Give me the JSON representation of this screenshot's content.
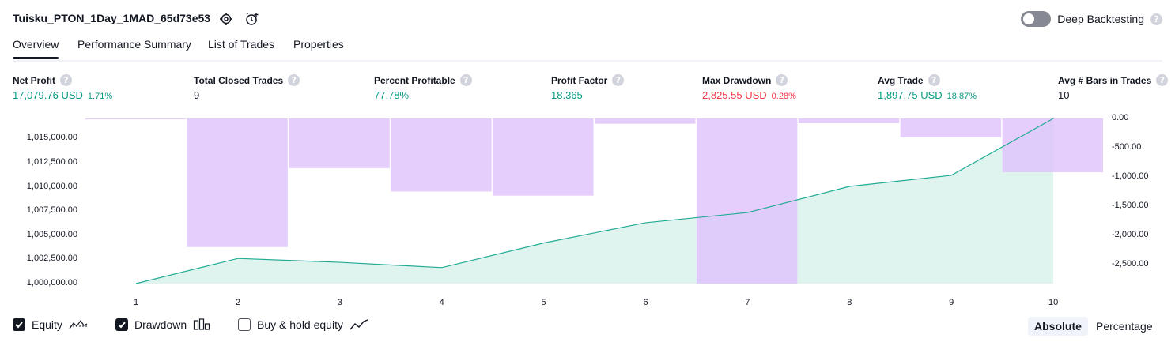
{
  "header": {
    "title": "Tuisku_PTON_1Day_1MAD_65d73e53",
    "deep_backtesting_label": "Deep Backtesting",
    "help_glyph": "?"
  },
  "tabs": [
    {
      "label": "Overview",
      "active": true
    },
    {
      "label": "Performance Summary",
      "active": false
    },
    {
      "label": "List of Trades",
      "active": false
    },
    {
      "label": "Properties",
      "active": false
    }
  ],
  "metrics": [
    {
      "label": "Net Profit",
      "value": "17,079.76 USD",
      "pct": "1.71%",
      "color": "#089981"
    },
    {
      "label": "Total Closed Trades",
      "value": "9",
      "pct": "",
      "color": "#131722"
    },
    {
      "label": "Percent Profitable",
      "value": "77.78%",
      "pct": "",
      "color": "#089981"
    },
    {
      "label": "Profit Factor",
      "value": "18.365",
      "pct": "",
      "color": "#089981"
    },
    {
      "label": "Max Drawdown",
      "value": "2,825.55 USD",
      "pct": "0.28%",
      "color": "#f23645"
    },
    {
      "label": "Avg Trade",
      "value": "1,897.75 USD",
      "pct": "18.87%",
      "color": "#089981"
    },
    {
      "label": "Avg # Bars in Trades",
      "value": "10",
      "pct": "",
      "color": "#131722"
    }
  ],
  "chart_data": {
    "type": "area",
    "x": [
      1,
      2,
      3,
      4,
      5,
      6,
      7,
      8,
      9,
      10
    ],
    "series": [
      {
        "name": "Equity",
        "axis": "left",
        "values": [
          1000000,
          1002600,
          1002200,
          1001650,
          1004200,
          1006300,
          1007350,
          1010050,
          1011200,
          1017080
        ]
      },
      {
        "name": "Drawdown",
        "axis": "right",
        "type": "bar",
        "values": [
          -15,
          -2200,
          -850,
          -1250,
          -1320,
          -90,
          -2825.55,
          -80,
          -320,
          -920
        ]
      }
    ],
    "left_axis": {
      "ticks": [
        "1,000,000.00",
        "1,002,500.00",
        "1,005,000.00",
        "1,007,500.00",
        "1,010,000.00",
        "1,012,500.00",
        "1,015,000.00"
      ],
      "range": [
        1000000,
        1017080
      ]
    },
    "right_axis": {
      "ticks": [
        "0.00",
        "-500.00",
        "-1,000.00",
        "-1,500.00",
        "-2,000.00",
        "-2,500.00"
      ],
      "range": [
        -2825.55,
        0
      ]
    },
    "x_ticks": [
      "1",
      "2",
      "3",
      "4",
      "5",
      "6",
      "7",
      "8",
      "9",
      "10"
    ],
    "colors": {
      "equity_line": "#22ab94",
      "equity_fill": "#dff4ef",
      "drawdown": "#e1c4fc"
    }
  },
  "footer": {
    "equity_label": "Equity",
    "equity_checked": true,
    "drawdown_label": "Drawdown",
    "drawdown_checked": true,
    "buyhold_label": "Buy & hold equity",
    "buyhold_checked": false,
    "absolute_label": "Absolute",
    "percentage_label": "Percentage"
  }
}
